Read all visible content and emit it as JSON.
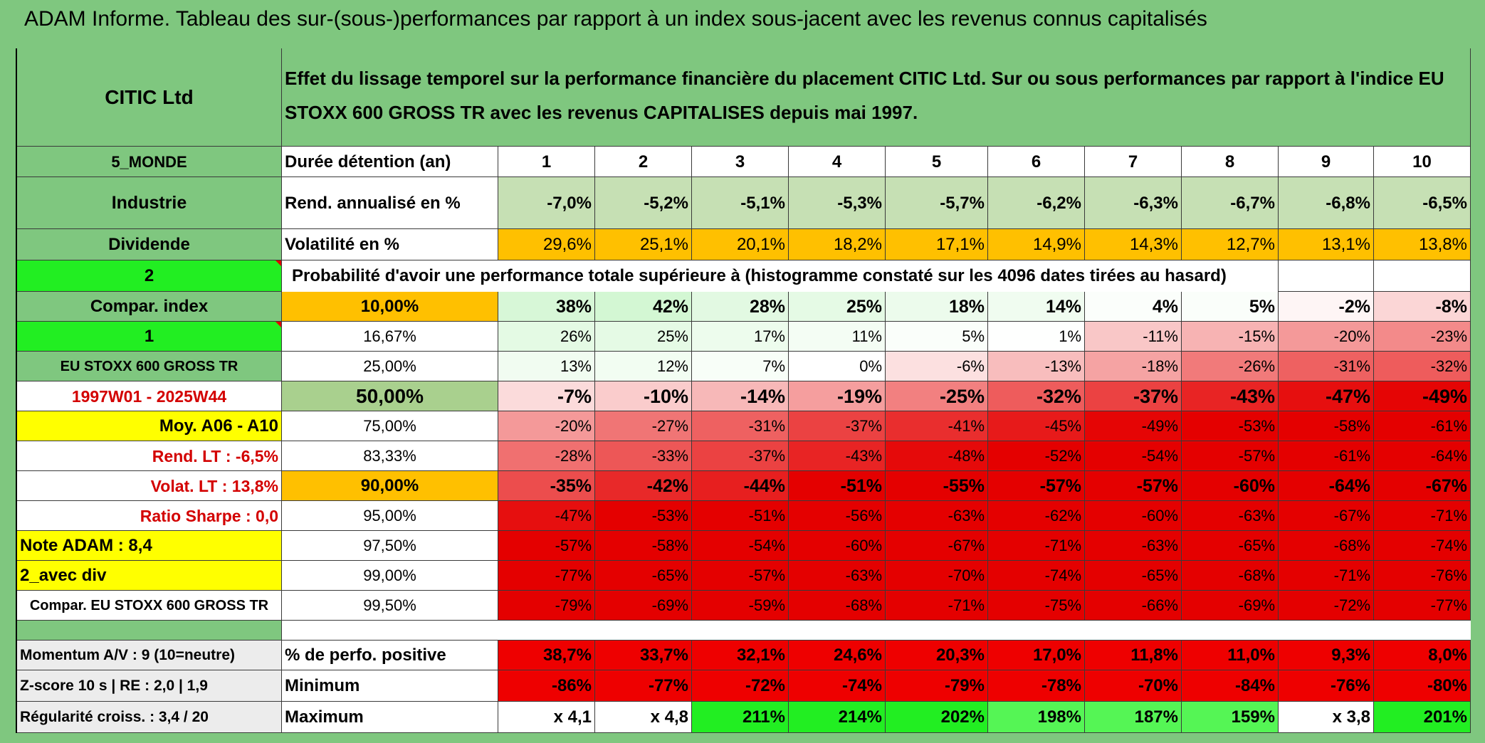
{
  "title": "ADAM Informe. Tableau des sur-(sous-)performances par rapport à un index sous-jacent avec les revenus connus capitalisés",
  "left": {
    "company": "CITIC Ltd",
    "region": "5_MONDE",
    "sector": "Industrie",
    "dividend_label": "Dividende",
    "selector_value": "2",
    "compar_index_label": "Compar. index",
    "index_selector": "1",
    "index_name": "EU STOXX 600 GROSS TR",
    "period": "1997W01 - 2025W44",
    "moy": "Moy. A06 - A10",
    "rend_lt": "Rend. LT :   -6,5%",
    "volat_lt": "Volat. LT :   13,8%",
    "sharpe": "Ratio Sharpe :    0,0",
    "note_adam": "Note ADAM : 8,4",
    "avec_div": "2_avec div",
    "compar_full": "Compar. EU STOXX 600 GROSS TR",
    "momentum": "Momentum A/V : 9 (10=neutre)",
    "zscore": "Z-score 10 s | RE : 2,0 | 1,9",
    "regularite": "Régularité croiss. : 3,4 / 20"
  },
  "header": {
    "description": "Effet du lissage temporel sur la performance financière du placement CITIC Ltd. Sur ou sous performances par rapport à l'indice EU STOXX 600 GROSS TR avec les revenus CAPITALISES depuis mai 1997.",
    "duration_label": "Durée détention (an)",
    "years": [
      "1",
      "2",
      "3",
      "4",
      "5",
      "6",
      "7",
      "8",
      "9",
      "10"
    ],
    "rend_label": "Rend. annualisé en %",
    "rend_values": [
      "-7,0%",
      "-5,2%",
      "-5,1%",
      "-5,3%",
      "-5,7%",
      "-6,2%",
      "-6,3%",
      "-6,7%",
      "-6,8%",
      "-6,5%"
    ],
    "vol_label": "Volatilité en %",
    "vol_values": [
      "29,6%",
      "25,1%",
      "20,1%",
      "18,2%",
      "17,1%",
      "14,9%",
      "14,3%",
      "12,7%",
      "13,1%",
      "13,8%"
    ],
    "proba_label": "Probabilité d'avoir une performance totale supérieure à (histogramme constaté sur les 4096 dates tirées au hasard)"
  },
  "prob_rows": [
    {
      "pct": "10,00%",
      "values": [
        "38%",
        "42%",
        "28%",
        "25%",
        "18%",
        "14%",
        "4%",
        "5%",
        "-2%",
        "-8%"
      ]
    },
    {
      "pct": "16,67%",
      "values": [
        "26%",
        "25%",
        "17%",
        "11%",
        "5%",
        "1%",
        "-11%",
        "-15%",
        "-20%",
        "-23%"
      ]
    },
    {
      "pct": "25,00%",
      "values": [
        "13%",
        "12%",
        "7%",
        "0%",
        "-6%",
        "-13%",
        "-18%",
        "-26%",
        "-31%",
        "-32%"
      ]
    },
    {
      "pct": "50,00%",
      "values": [
        "-7%",
        "-10%",
        "-14%",
        "-19%",
        "-25%",
        "-32%",
        "-37%",
        "-43%",
        "-47%",
        "-49%"
      ]
    },
    {
      "pct": "75,00%",
      "values": [
        "-20%",
        "-27%",
        "-31%",
        "-37%",
        "-41%",
        "-45%",
        "-49%",
        "-53%",
        "-58%",
        "-61%"
      ]
    },
    {
      "pct": "83,33%",
      "values": [
        "-28%",
        "-33%",
        "-37%",
        "-43%",
        "-48%",
        "-52%",
        "-54%",
        "-57%",
        "-61%",
        "-64%"
      ]
    },
    {
      "pct": "90,00%",
      "values": [
        "-35%",
        "-42%",
        "-44%",
        "-51%",
        "-55%",
        "-57%",
        "-57%",
        "-60%",
        "-64%",
        "-67%"
      ]
    },
    {
      "pct": "95,00%",
      "values": [
        "-47%",
        "-53%",
        "-51%",
        "-56%",
        "-63%",
        "-62%",
        "-60%",
        "-63%",
        "-67%",
        "-71%"
      ]
    },
    {
      "pct": "97,50%",
      "values": [
        "-57%",
        "-58%",
        "-54%",
        "-60%",
        "-67%",
        "-71%",
        "-63%",
        "-65%",
        "-68%",
        "-74%"
      ]
    },
    {
      "pct": "99,00%",
      "values": [
        "-77%",
        "-65%",
        "-57%",
        "-63%",
        "-70%",
        "-74%",
        "-65%",
        "-68%",
        "-71%",
        "-76%"
      ]
    },
    {
      "pct": "99,50%",
      "values": [
        "-79%",
        "-69%",
        "-59%",
        "-68%",
        "-71%",
        "-75%",
        "-66%",
        "-69%",
        "-72%",
        "-77%"
      ]
    }
  ],
  "stats": {
    "positive_label": "% de perfo. positive",
    "positive_values": [
      "38,7%",
      "33,7%",
      "32,1%",
      "24,6%",
      "20,3%",
      "17,0%",
      "11,8%",
      "11,0%",
      "9,3%",
      "8,0%"
    ],
    "min_label": "Minimum",
    "min_values": [
      "-86%",
      "-77%",
      "-72%",
      "-74%",
      "-79%",
      "-78%",
      "-70%",
      "-84%",
      "-76%",
      "-80%"
    ],
    "max_label": "Maximum",
    "max_values": [
      "x 4,1",
      "x 4,8",
      "211%",
      "214%",
      "202%",
      "198%",
      "187%",
      "159%",
      "x 3,8",
      "201%"
    ]
  },
  "colors": {
    "header_green": "#7fc77f",
    "bright_green": "#22ee22",
    "yellow": "#ffff00",
    "orange": "#ffc000",
    "rend_green": "#c6e0b4",
    "median_green": "#a9d08e",
    "label_red": "#d30000"
  }
}
